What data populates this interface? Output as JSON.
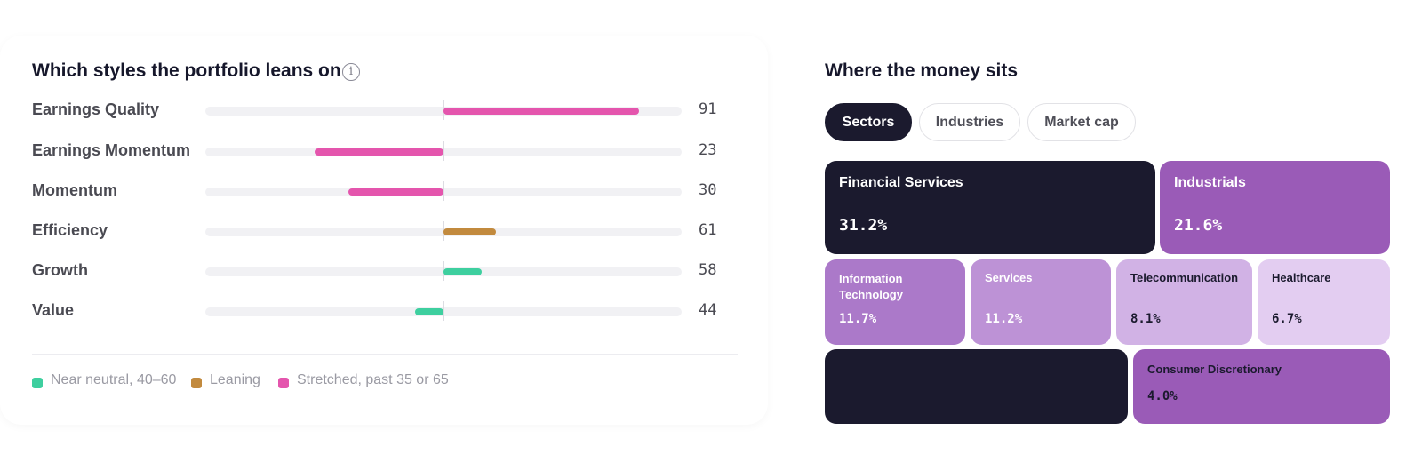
{
  "styles": {
    "title": "Which styles the portfolio leans on",
    "info_icon": "info-icon",
    "rows": [
      {
        "label": "Earnings Quality",
        "value": "91",
        "score": 91,
        "category": "stretched"
      },
      {
        "label": "Earnings Momentum",
        "value": "23",
        "score": 23,
        "category": "stretched"
      },
      {
        "label": "Momentum",
        "value": "30",
        "score": 30,
        "category": "stretched"
      },
      {
        "label": "Efficiency",
        "value": "61",
        "score": 61,
        "category": "leaning"
      },
      {
        "label": "Growth",
        "value": "58",
        "score": 58,
        "category": "neutral"
      },
      {
        "label": "Value",
        "value": "44",
        "score": 44,
        "category": "neutral"
      }
    ],
    "legend": [
      {
        "key": "neutral",
        "label": "Near neutral, 40–60",
        "color": "#3ecf9f"
      },
      {
        "key": "leaning",
        "label": "Leaning",
        "color": "#c28a3e"
      },
      {
        "key": "stretched",
        "label": "Stretched, past 35 or 65",
        "color": "#e455ad"
      }
    ]
  },
  "allocation": {
    "title": "Where the money sits",
    "tabs": [
      {
        "label": "Sectors",
        "active": true
      },
      {
        "label": "Industries",
        "active": false
      },
      {
        "label": "Market cap",
        "active": false
      }
    ],
    "tiles": [
      {
        "name": "Financial Services",
        "pct": "31.2%",
        "bg": "#1b1a2e",
        "fg": "#ffffff"
      },
      {
        "name": "Industrials",
        "pct": "21.6%",
        "bg": "#9a5bb7",
        "fg": "#ffffff"
      },
      {
        "name": "Information Technology",
        "pct": "11.7%",
        "bg": "#ab79c9",
        "fg": "#ffffff"
      },
      {
        "name": "Services",
        "pct": "11.2%",
        "bg": "#bd92d6",
        "fg": "#ffffff"
      },
      {
        "name": "Telecommunication",
        "pct": "8.1%",
        "bg": "#d1b2e5",
        "fg": "#1b1a2e"
      },
      {
        "name": "Healthcare",
        "pct": "6.7%",
        "bg": "#e3cdf1",
        "fg": "#1b1a2e"
      },
      {
        "name": "",
        "pct": "",
        "bg": "#1b1a2e",
        "fg": "#ffffff"
      },
      {
        "name": "Consumer Discretionary",
        "pct": "4.0%",
        "bg": "#9a5bb7",
        "fg": "#1b1a2e"
      }
    ]
  }
}
